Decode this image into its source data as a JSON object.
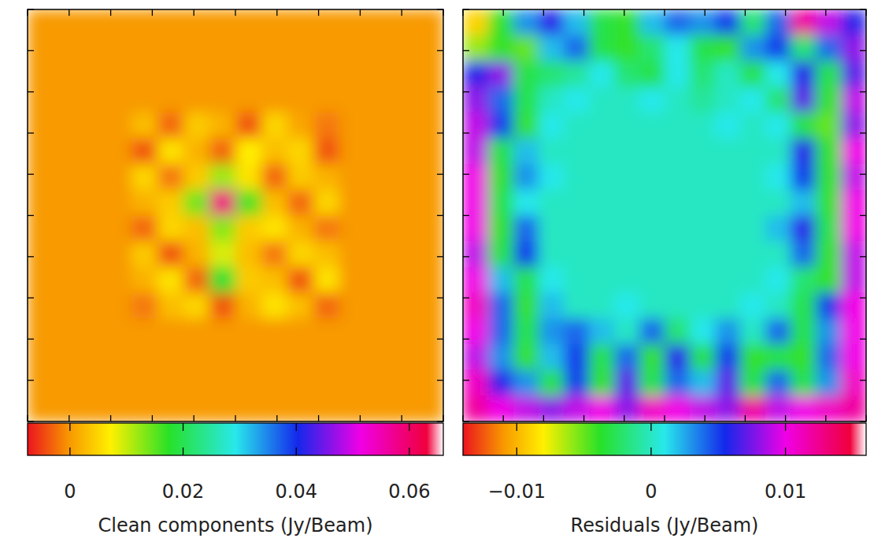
{
  "chart_data": [
    {
      "type": "heatmap",
      "tick_labels": false,
      "xlim": [
        0,
        10
      ],
      "ylim": [
        0,
        10
      ],
      "xticks": [
        0,
        1,
        2,
        3,
        4,
        5,
        6,
        7,
        8,
        9,
        10
      ],
      "yticks": [
        0,
        1,
        2,
        3,
        4,
        5,
        6,
        7,
        8,
        9,
        10
      ],
      "colorbar": {
        "label": "Clean components (Jy/Beam)",
        "range": [
          -0.0075,
          0.066
        ],
        "ticks": [
          0,
          0.02,
          0.04,
          0.06
        ]
      },
      "cells": [
        [
          0,
          0,
          0,
          0,
          0,
          0,
          0,
          0,
          0,
          0,
          0,
          0,
          0,
          0,
          0,
          0
        ],
        [
          0,
          0,
          0,
          0,
          0,
          0,
          0,
          0,
          0,
          0,
          0,
          0,
          0,
          0,
          0,
          0
        ],
        [
          0,
          0,
          0,
          0,
          0,
          0,
          0,
          0,
          0,
          0,
          0,
          0,
          0,
          0,
          0,
          0
        ],
        [
          0,
          0,
          0,
          0,
          0,
          0,
          0,
          0,
          0,
          0,
          0,
          0,
          0,
          0,
          0,
          0
        ],
        [
          0,
          0,
          0,
          0,
          0.003,
          -0.003,
          0.004,
          0.002,
          -0.004,
          0.005,
          0.001,
          -0.002,
          0,
          0,
          0,
          0
        ],
        [
          0,
          0,
          0,
          0,
          -0.004,
          0.006,
          0.002,
          -0.003,
          0.007,
          0.003,
          0.005,
          -0.004,
          0,
          0,
          0,
          0
        ],
        [
          0,
          0,
          0,
          0,
          0.005,
          -0.002,
          0.004,
          0.012,
          0.006,
          -0.003,
          0.004,
          0.002,
          0,
          0,
          0,
          0
        ],
        [
          0,
          0,
          0,
          0,
          0.002,
          0.004,
          0.014,
          0.058,
          0.016,
          0.003,
          -0.003,
          0.005,
          0,
          0,
          0,
          0
        ],
        [
          0,
          0,
          0,
          0,
          -0.003,
          0.005,
          0.003,
          0.013,
          0.004,
          0.006,
          0.002,
          -0.002,
          0,
          0,
          0,
          0
        ],
        [
          0,
          0,
          0,
          0,
          0.004,
          -0.004,
          0.002,
          0.009,
          0.003,
          -0.002,
          0.005,
          0.003,
          0,
          0,
          0,
          0
        ],
        [
          0,
          0,
          0,
          0,
          0.002,
          0.006,
          -0.003,
          0.018,
          0.004,
          0.003,
          -0.004,
          0.006,
          0,
          0,
          0,
          0
        ],
        [
          0,
          0,
          0,
          0,
          -0.002,
          0.003,
          0.005,
          -0.004,
          0.002,
          0.006,
          0.003,
          -0.003,
          0,
          0,
          0,
          0
        ],
        [
          0,
          0,
          0,
          0,
          0,
          0,
          0,
          0,
          0,
          0,
          0,
          0,
          0,
          0,
          0,
          0
        ],
        [
          0,
          0,
          0,
          0,
          0,
          0,
          0,
          0,
          0,
          0,
          0,
          0,
          0,
          0,
          0,
          0
        ],
        [
          0,
          0,
          0,
          0,
          0,
          0,
          0,
          0,
          0,
          0,
          0,
          0,
          0,
          0,
          0,
          0
        ],
        [
          0,
          0,
          0,
          0,
          0,
          0,
          0,
          0,
          0,
          0,
          0,
          0,
          0,
          0,
          0,
          0
        ]
      ]
    },
    {
      "type": "heatmap",
      "tick_labels": false,
      "xlim": [
        0,
        10
      ],
      "ylim": [
        0,
        10
      ],
      "xticks": [
        0,
        1,
        2,
        3,
        4,
        5,
        6,
        7,
        8,
        9,
        10
      ],
      "yticks": [
        0,
        1,
        2,
        3,
        4,
        5,
        6,
        7,
        8,
        9,
        10
      ],
      "colorbar": {
        "label": "Residuals (Jy/Beam)",
        "range": [
          -0.014,
          0.016
        ],
        "ticks": [
          {
            "value": -0.01,
            "label": "−0.01"
          },
          0,
          0.01
        ]
      },
      "cells": [
        [
          -0.009,
          -0.004,
          0.003,
          0.006,
          0.002,
          -0.003,
          -0.004,
          0.002,
          0.004,
          0.003,
          0.005,
          -0.002,
          0.004,
          0.012,
          0.009,
          0.006
        ],
        [
          -0.006,
          -0.004,
          -0.005,
          0.002,
          0.004,
          -0.003,
          -0.004,
          -0.002,
          0.001,
          -0.003,
          -0.004,
          0.003,
          0.005,
          -0.002,
          0.004,
          0.008
        ],
        [
          0.006,
          0.008,
          -0.003,
          -0.002,
          -0.001,
          0.001,
          -0.002,
          -0.003,
          0.001,
          -0.002,
          0,
          -0.003,
          0.001,
          0.006,
          -0.003,
          0.007
        ],
        [
          0.008,
          0.004,
          -0.003,
          0,
          0.001,
          0,
          0,
          0.001,
          0,
          -0.001,
          0,
          0.001,
          -0.002,
          0.007,
          -0.004,
          0.009
        ],
        [
          0.009,
          0.005,
          -0.004,
          0.001,
          0,
          0,
          0,
          0,
          0,
          0,
          0.001,
          0,
          0.001,
          -0.003,
          -0.005,
          0.008
        ],
        [
          0.009,
          -0.003,
          0.002,
          0,
          0,
          0,
          0,
          0,
          0,
          0,
          0,
          0,
          0,
          0.006,
          -0.004,
          0.01
        ],
        [
          0.01,
          -0.004,
          0.003,
          0.001,
          0,
          0,
          0,
          0,
          0,
          0,
          0,
          0,
          0.001,
          0.005,
          -0.004,
          0.009
        ],
        [
          0.01,
          -0.003,
          0.001,
          0,
          0,
          0,
          0,
          0,
          0,
          0,
          0,
          0,
          0,
          0.002,
          -0.004,
          0.01
        ],
        [
          0.01,
          -0.004,
          0.004,
          0,
          0,
          0,
          0,
          0,
          0,
          0,
          0,
          0,
          0.002,
          0.006,
          -0.003,
          0.01
        ],
        [
          0.009,
          -0.003,
          0.005,
          0,
          0,
          0,
          0,
          0,
          0,
          0,
          0,
          0,
          0,
          0.004,
          -0.004,
          0.009
        ],
        [
          0.01,
          0.002,
          -0.003,
          0.001,
          0,
          0,
          0,
          0,
          0,
          0,
          0,
          0,
          0.001,
          -0.002,
          -0.004,
          0.009
        ],
        [
          0.011,
          0.004,
          -0.004,
          0.002,
          0,
          0,
          0.001,
          0,
          0,
          0,
          0,
          0.001,
          0,
          -0.003,
          0.005,
          0.01
        ],
        [
          0.01,
          0.004,
          -0.003,
          0.003,
          0.004,
          0.002,
          0,
          0.004,
          -0.002,
          0.001,
          0.003,
          0,
          0.004,
          -0.003,
          0.003,
          0.01
        ],
        [
          0.009,
          0.003,
          -0.004,
          0.002,
          0.005,
          -0.003,
          0.004,
          -0.004,
          0.006,
          -0.003,
          0.005,
          -0.004,
          -0.003,
          -0.004,
          0.004,
          0.01
        ],
        [
          0.011,
          0.006,
          0.003,
          -0.003,
          0.005,
          -0.004,
          0.007,
          -0.003,
          0.004,
          0.002,
          0.007,
          -0.003,
          0.004,
          -0.003,
          0.003,
          0.011
        ],
        [
          0.012,
          0.01,
          0.009,
          0.008,
          0.009,
          0.01,
          0.008,
          0.011,
          0.01,
          0.009,
          0.008,
          0.012,
          0.009,
          0.01,
          0.011,
          0.012
        ]
      ]
    }
  ]
}
